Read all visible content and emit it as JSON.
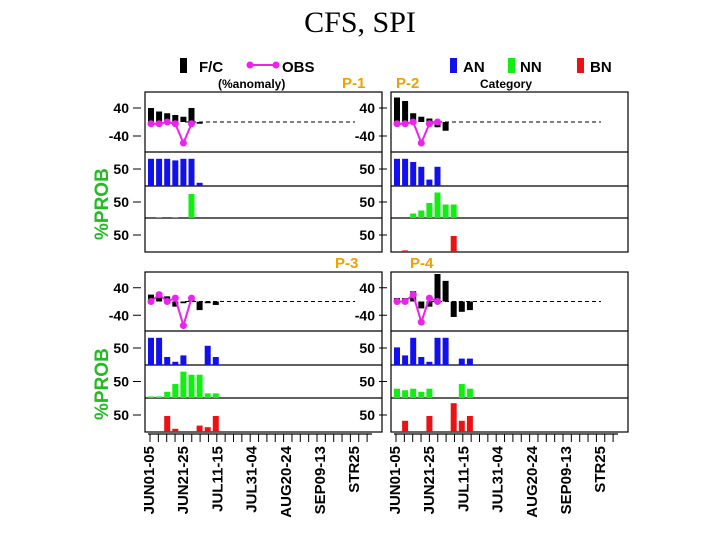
{
  "title": "CFS, SPI",
  "legend": {
    "fc_label": "F/C",
    "obs_label": "OBS",
    "anomaly_note": "(%anomaly)",
    "an_label": "AN",
    "nn_label": "NN",
    "bn_label": "BN",
    "category_label": "Category"
  },
  "colors": {
    "fc": "#000000",
    "obs": "#ee22ee",
    "an": "#1111ee",
    "nn": "#11ee11",
    "bn": "#ee1111",
    "period": "#f0a000"
  },
  "y_axis_label": "%PROB",
  "chart_data": {
    "type": "bar",
    "x_tick_labels": [
      "JUN01-05",
      "JUN21-25",
      "JUL11-15",
      "JUL31-04",
      "AUG20-24",
      "SEP09-13",
      "STR25"
    ],
    "anomaly_tick_labels": [
      "40",
      "-40"
    ],
    "prob_tick_label": "50",
    "panels": [
      {
        "period": "P-1",
        "fc": [
          40,
          30,
          25,
          20,
          15,
          40,
          -5
        ],
        "obs": [
          -5,
          -5,
          0,
          -5,
          -60,
          -5
        ],
        "an": [
          85,
          85,
          85,
          80,
          85,
          85,
          10
        ],
        "nn": [
          0,
          3,
          0,
          3,
          0,
          80,
          0
        ],
        "bn": [
          0,
          0,
          0,
          0,
          0,
          0,
          0
        ]
      },
      {
        "period": "P-2",
        "fc": [
          70,
          60,
          25,
          15,
          10,
          -15,
          -25
        ],
        "obs": [
          -5,
          -5,
          0,
          -60,
          -5,
          0
        ],
        "an": [
          85,
          85,
          75,
          60,
          20,
          60,
          0
        ],
        "nn": [
          0,
          0,
          15,
          25,
          50,
          85,
          45,
          45
        ],
        "bn": [
          0,
          5,
          0,
          0,
          0,
          0,
          0,
          50
        ]
      },
      {
        "period": "P-3",
        "fc": [
          20,
          25,
          15,
          -15,
          -5,
          10,
          -25,
          -5,
          -10
        ],
        "obs": [
          0,
          20,
          0,
          10,
          -70,
          10
        ],
        "an": [
          85,
          85,
          25,
          10,
          30,
          0,
          0,
          60,
          25
        ],
        "nn": [
          5,
          5,
          20,
          45,
          85,
          75,
          75,
          15,
          15
        ],
        "bn": [
          0,
          0,
          50,
          10,
          0,
          0,
          20,
          15,
          50
        ]
      },
      {
        "period": "P-4",
        "fc": [
          10,
          10,
          30,
          -20,
          -15,
          80,
          60,
          -45,
          -30,
          -25
        ],
        "obs": [
          0,
          0,
          20,
          -60,
          10,
          0
        ],
        "an": [
          55,
          30,
          85,
          25,
          10,
          85,
          85,
          0,
          20,
          20
        ],
        "nn": [
          30,
          25,
          30,
          20,
          30,
          0,
          0,
          0,
          45,
          30
        ],
        "bn": [
          0,
          35,
          0,
          0,
          50,
          0,
          0,
          90,
          35,
          50
        ]
      }
    ]
  }
}
